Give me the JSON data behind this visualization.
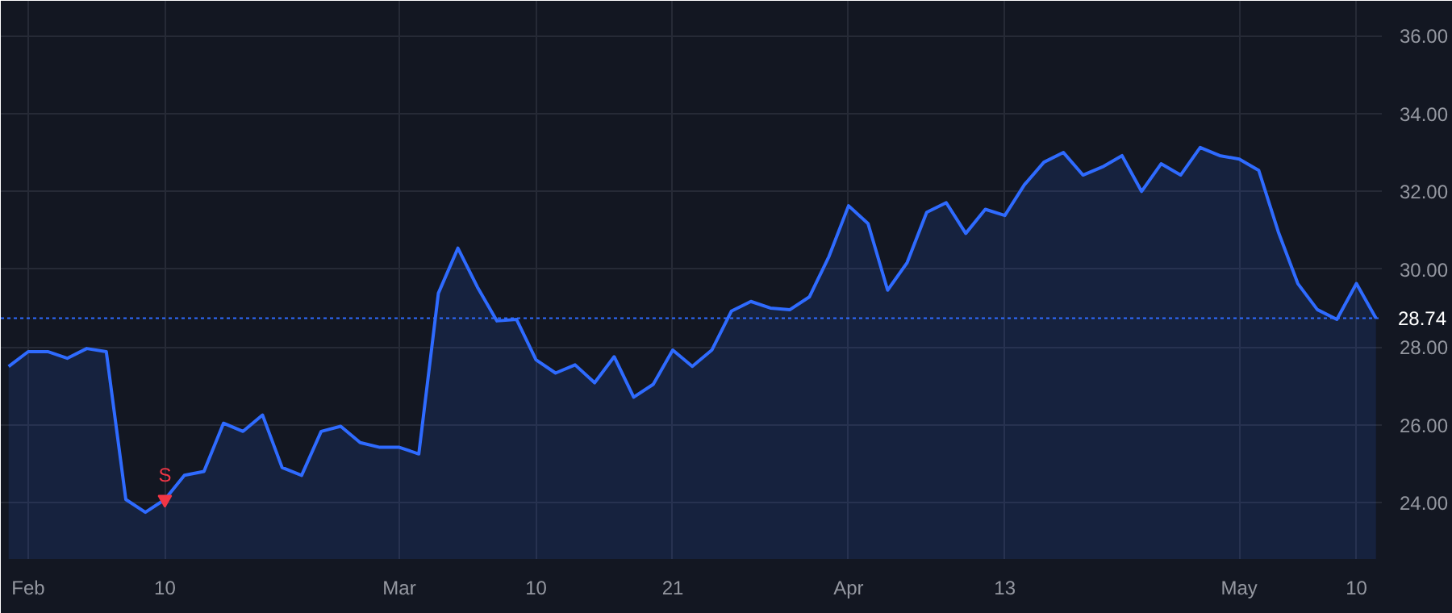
{
  "chart_data": {
    "type": "area",
    "categories": [
      null,
      "Feb",
      null,
      null,
      null,
      null,
      null,
      null,
      "10",
      null,
      null,
      null,
      null,
      null,
      null,
      null,
      null,
      null,
      null,
      null,
      "Mar",
      null,
      null,
      null,
      null,
      null,
      null,
      "10",
      null,
      null,
      null,
      null,
      null,
      null,
      "21",
      null,
      null,
      null,
      null,
      null,
      null,
      null,
      null,
      "Apr",
      null,
      null,
      null,
      null,
      null,
      null,
      null,
      "13",
      null,
      null,
      null,
      null,
      null,
      null,
      null,
      null,
      null,
      null,
      null,
      "May",
      null,
      null,
      null,
      null,
      null,
      "10",
      null
    ],
    "series": [
      {
        "color": "#2f6bff",
        "values": [
          27.5,
          27.88,
          27.88,
          27.71,
          27.96,
          27.88,
          24.08,
          23.75,
          24.08,
          24.7,
          24.8,
          26.04,
          25.83,
          26.25,
          24.9,
          24.7,
          25.83,
          25.96,
          25.54,
          25.42,
          25.42,
          25.25,
          29.38,
          30.54,
          29.54,
          28.67,
          28.71,
          27.67,
          27.33,
          27.54,
          27.08,
          27.75,
          26.71,
          27.04,
          27.92,
          27.5,
          27.92,
          28.92,
          29.17,
          29.0,
          28.96,
          29.29,
          30.33,
          31.63,
          31.17,
          29.46,
          30.17,
          31.46,
          31.71,
          30.92,
          31.54,
          31.38,
          32.17,
          32.75,
          33.0,
          32.42,
          32.63,
          32.92,
          32.0,
          32.71,
          32.42,
          33.13,
          32.92,
          32.83,
          32.54,
          30.96,
          29.63,
          28.96,
          28.71,
          29.63,
          28.74
        ]
      }
    ],
    "ylim": [
      22.55,
      36.9
    ],
    "yticks": [
      {
        "value": 24,
        "label": "24.00"
      },
      {
        "value": 26,
        "label": "26.00"
      },
      {
        "value": 28,
        "label": "28.00"
      },
      {
        "value": 30,
        "label": "30.00"
      },
      {
        "value": 32,
        "label": "32.00"
      },
      {
        "value": 34,
        "label": "34.00"
      },
      {
        "value": 36,
        "label": "36.00"
      }
    ],
    "ref_lines": [
      {
        "axis": "y",
        "value": 28.74,
        "label": "28.74",
        "color": "#2f6bff",
        "line_style": "dotted"
      }
    ],
    "annotations": [
      {
        "text": "S",
        "x": "10",
        "y": 24.08
      }
    ],
    "grid": true
  }
}
